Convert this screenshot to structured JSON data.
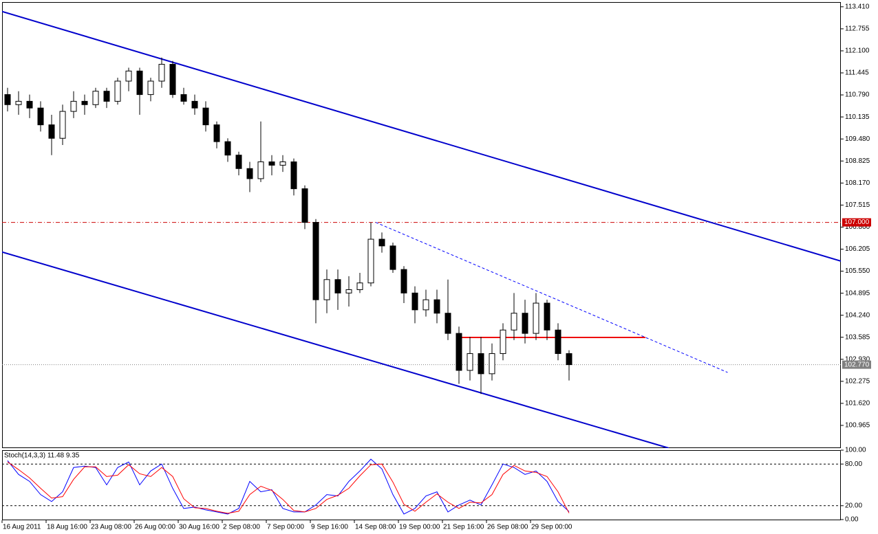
{
  "chart_data": [
    {
      "type": "candlestick",
      "categories": [
        "16 Aug 2011",
        null,
        null,
        null,
        "18 Aug 16:00",
        null,
        null,
        null,
        "23 Aug 08:00",
        null,
        null,
        null,
        "26 Aug 00:00",
        null,
        null,
        null,
        "30 Aug 16:00",
        null,
        null,
        null,
        "2 Sep 08:00",
        null,
        null,
        null,
        "7 Sep 00:00",
        null,
        null,
        null,
        "9 Sep 16:00",
        null,
        null,
        null,
        "14 Sep 08:00",
        null,
        null,
        null,
        "19 Sep 00:00",
        null,
        null,
        null,
        "21 Sep 16:00",
        null,
        null,
        null,
        "26 Sep 08:00",
        null,
        null,
        null,
        "29 Sep 00:00",
        null,
        null,
        null
      ],
      "open": [
        110.8,
        110.5,
        110.6,
        110.4,
        109.9,
        109.5,
        110.3,
        110.6,
        110.5,
        110.9,
        110.6,
        111.2,
        111.5,
        110.8,
        111.2,
        111.7,
        110.8,
        110.6,
        110.4,
        109.9,
        109.4,
        109.0,
        108.6,
        108.3,
        108.8,
        108.7,
        108.8,
        108.0,
        107.0,
        104.7,
        105.3,
        104.9,
        105.0,
        105.2,
        106.5,
        106.3,
        105.6,
        104.9,
        104.4,
        104.7,
        104.3,
        103.7,
        102.6,
        103.1,
        102.5,
        103.1,
        103.8,
        104.3,
        103.7,
        104.6,
        103.8,
        103.1
      ],
      "high": [
        111.0,
        110.9,
        110.8,
        110.6,
        110.2,
        110.5,
        110.9,
        110.8,
        111.0,
        111.0,
        111.3,
        111.6,
        111.6,
        111.3,
        111.9,
        111.8,
        111.0,
        110.8,
        110.6,
        110.0,
        109.5,
        109.1,
        108.8,
        110.0,
        109.0,
        109.0,
        108.9,
        108.1,
        107.1,
        105.6,
        105.6,
        105.4,
        105.5,
        107.0,
        106.7,
        106.4,
        105.7,
        105.1,
        105.0,
        105.0,
        105.3,
        103.9,
        103.6,
        103.6,
        103.4,
        104.0,
        104.9,
        104.7,
        104.9,
        104.7,
        104.0,
        103.2
      ],
      "low": [
        110.3,
        110.2,
        110.1,
        109.7,
        109.0,
        109.3,
        110.1,
        110.2,
        110.4,
        110.4,
        110.5,
        110.9,
        110.2,
        110.6,
        111.0,
        110.7,
        110.5,
        110.2,
        109.7,
        109.2,
        108.8,
        108.4,
        107.9,
        108.2,
        108.4,
        108.5,
        107.8,
        106.8,
        104.0,
        104.3,
        104.4,
        104.5,
        104.9,
        105.1,
        106.1,
        105.5,
        104.6,
        104.0,
        104.2,
        104.0,
        103.5,
        102.2,
        102.3,
        101.9,
        102.3,
        102.9,
        103.5,
        103.4,
        103.5,
        103.5,
        102.9,
        102.3
      ],
      "close": [
        110.5,
        110.6,
        110.4,
        109.9,
        109.5,
        110.3,
        110.6,
        110.5,
        110.9,
        110.6,
        111.2,
        111.5,
        110.8,
        111.2,
        111.7,
        110.8,
        110.6,
        110.4,
        109.9,
        109.4,
        109.0,
        108.6,
        108.3,
        108.8,
        108.7,
        108.8,
        108.0,
        107.0,
        104.7,
        105.3,
        104.9,
        105.0,
        105.2,
        106.5,
        106.3,
        105.6,
        104.9,
        104.4,
        104.7,
        104.3,
        103.7,
        102.6,
        103.1,
        102.5,
        103.1,
        103.8,
        104.3,
        103.7,
        104.6,
        103.8,
        103.1,
        102.77
      ],
      "up_color": "#ffffff",
      "down_color": "#000000",
      "outline_color": "#000000",
      "ylim": [
        100.29,
        113.55
      ],
      "yticks": [
        {
          "value": 113.41,
          "label": "113.410"
        },
        {
          "value": 112.755,
          "label": "112.755"
        },
        {
          "value": 112.1,
          "label": "112.100"
        },
        {
          "value": 111.445,
          "label": "111.445"
        },
        {
          "value": 110.79,
          "label": "110.790"
        },
        {
          "value": 110.135,
          "label": "110.135"
        },
        {
          "value": 109.48,
          "label": "109.480"
        },
        {
          "value": 108.825,
          "label": "108.825"
        },
        {
          "value": 108.17,
          "label": "108.170"
        },
        {
          "value": 107.515,
          "label": "107.515"
        },
        {
          "value": 106.86,
          "label": "106.860"
        },
        {
          "value": 106.205,
          "label": "106.205"
        },
        {
          "value": 105.55,
          "label": "105.550"
        },
        {
          "value": 104.895,
          "label": "104.895"
        },
        {
          "value": 104.24,
          "label": "104.240"
        },
        {
          "value": 103.585,
          "label": "103.585"
        },
        {
          "value": 102.93,
          "label": "102.930"
        },
        {
          "value": 102.275,
          "label": "102.275"
        },
        {
          "value": 101.62,
          "label": "101.620"
        },
        {
          "value": 100.965,
          "label": "100.965"
        }
      ],
      "price_lines": [
        {
          "value": 107.0,
          "label": "107.000",
          "color": "#cc0000",
          "style": "dashdot"
        },
        {
          "value": 102.77,
          "label": "102.770",
          "color": "#808080",
          "style": "dotted"
        }
      ],
      "trendlines": [
        {
          "x": [
            -0.5,
            75.69
          ],
          "y": [
            113.27,
            105.85
          ],
          "color": "#0000cc",
          "style": "solid"
        },
        {
          "x": [
            -0.5,
            60.06
          ],
          "y": [
            106.12,
            100.29
          ],
          "color": "#0000cc",
          "style": "solid"
        },
        {
          "x": [
            33.44,
            65.4
          ],
          "y": [
            107.0,
            102.54
          ],
          "color": "#0000ff",
          "style": "dashed"
        },
        {
          "x": [
            40.94,
            57.94
          ],
          "y": [
            103.58,
            103.58
          ],
          "color": "#ee0000",
          "style": "solid"
        }
      ]
    },
    {
      "type": "line",
      "title": "Stoch(14,3,3) 11.48 9.35",
      "series": [
        {
          "color": "#0000ff",
          "values": [
            85,
            65,
            55,
            36,
            26,
            40,
            75,
            77,
            75,
            50,
            75,
            83,
            50,
            70,
            80,
            45,
            16,
            18,
            14,
            11,
            8,
            16,
            55,
            40,
            43,
            16,
            11,
            11,
            21,
            36,
            34,
            55,
            70,
            87,
            73,
            36,
            8,
            16,
            34,
            40,
            11,
            21,
            28,
            21,
            50,
            80,
            75,
            65,
            70,
            55,
            26,
            11.48
          ]
        },
        {
          "color": "#ff0000",
          "values": [
            83,
            72,
            60,
            45,
            31,
            33,
            58,
            76,
            76,
            62,
            64,
            79,
            66,
            62,
            75,
            62,
            30,
            17,
            16,
            12,
            9,
            12,
            36,
            48,
            42,
            29,
            13,
            11,
            16,
            29,
            35,
            45,
            63,
            79,
            80,
            54,
            22,
            12,
            25,
            37,
            25,
            16,
            25,
            24,
            36,
            65,
            78,
            70,
            68,
            62,
            40,
            9.35
          ]
        }
      ],
      "ylim": [
        0,
        100
      ],
      "yticks": [
        {
          "value": 100,
          "label": "100.00"
        },
        {
          "value": 80,
          "label": "80.00"
        },
        {
          "value": 20,
          "label": "20.00"
        },
        {
          "value": 0,
          "label": "0.00"
        }
      ],
      "levels": [
        80,
        20
      ]
    }
  ]
}
